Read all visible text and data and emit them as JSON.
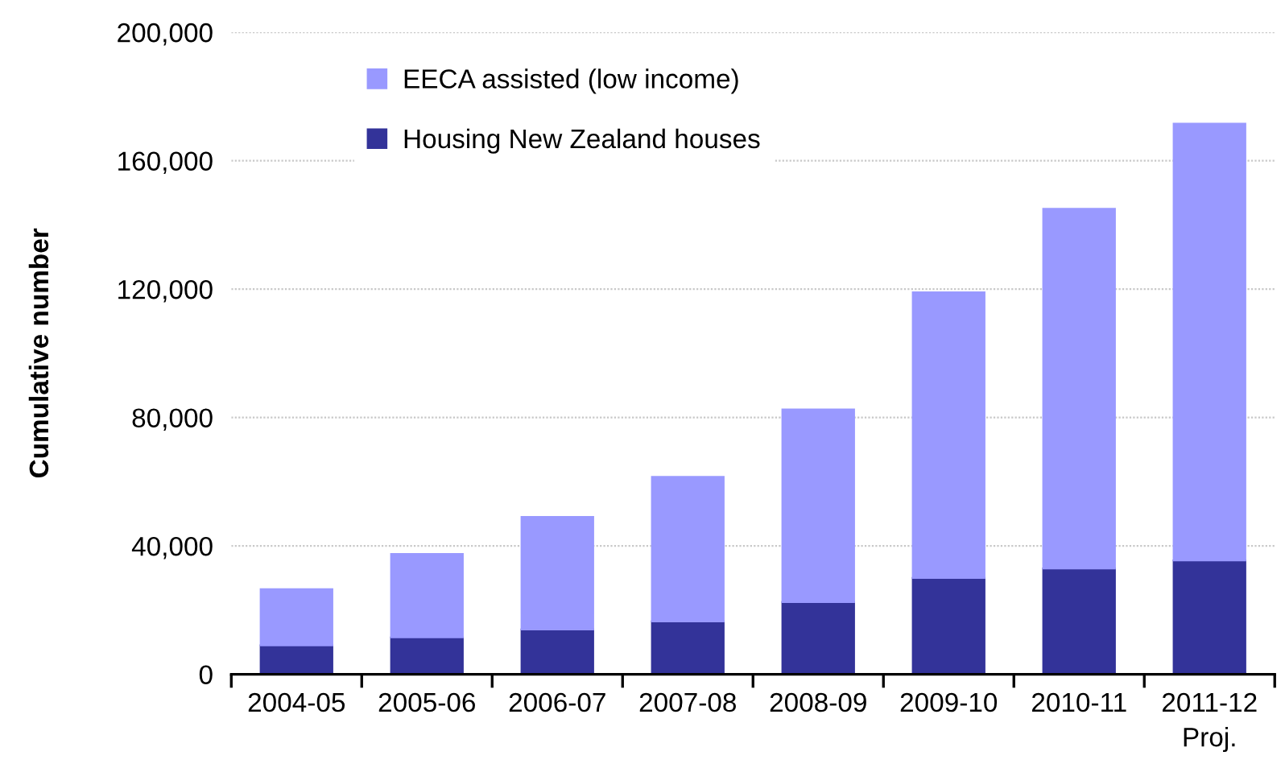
{
  "chart_data": {
    "type": "bar",
    "stacked": true,
    "ylabel": "Cumulative number",
    "categories": [
      "2004-05",
      "2005-06",
      "2006-07",
      "2007-08",
      "2008-09",
      "2009-10",
      "2010-11",
      "2011-12\nProj."
    ],
    "series": [
      {
        "name": "Housing New Zealand houses",
        "color": "#333399",
        "values": [
          9000,
          11500,
          14000,
          16500,
          22500,
          30000,
          33000,
          35500
        ]
      },
      {
        "name": "EECA assisted (low income)",
        "color": "#9999ff",
        "values": [
          17500,
          26000,
          35000,
          45000,
          60000,
          89000,
          112000,
          136000
        ]
      }
    ],
    "ylim": [
      0,
      200000
    ],
    "yticks": [
      {
        "value": 0,
        "label": "0"
      },
      {
        "value": 40000,
        "label": "40,000"
      },
      {
        "value": 80000,
        "label": "80,000"
      },
      {
        "value": 120000,
        "label": "120,000"
      },
      {
        "value": 160000,
        "label": "160,000"
      },
      {
        "value": 200000,
        "label": "200,000"
      }
    ],
    "grid": "y",
    "legend": "top left"
  }
}
